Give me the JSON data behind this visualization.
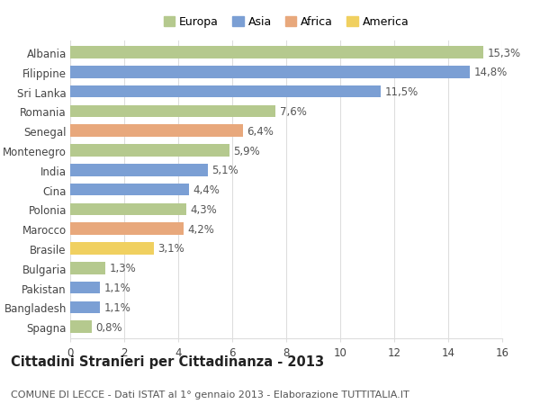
{
  "countries": [
    "Albania",
    "Filippine",
    "Sri Lanka",
    "Romania",
    "Senegal",
    "Montenegro",
    "India",
    "Cina",
    "Polonia",
    "Marocco",
    "Brasile",
    "Bulgaria",
    "Pakistan",
    "Bangladesh",
    "Spagna"
  ],
  "values": [
    15.3,
    14.8,
    11.5,
    7.6,
    6.4,
    5.9,
    5.1,
    4.4,
    4.3,
    4.2,
    3.1,
    1.3,
    1.1,
    1.1,
    0.8
  ],
  "continents": [
    "Europa",
    "Asia",
    "Asia",
    "Europa",
    "Africa",
    "Europa",
    "Asia",
    "Asia",
    "Europa",
    "Africa",
    "America",
    "Europa",
    "Asia",
    "Asia",
    "Europa"
  ],
  "continent_colors": {
    "Europa": "#b5c98e",
    "Asia": "#7b9fd4",
    "Africa": "#e8a87c",
    "America": "#f0d060"
  },
  "legend_order": [
    "Europa",
    "Asia",
    "Africa",
    "America"
  ],
  "title": "Cittadini Stranieri per Cittadinanza - 2013",
  "subtitle": "COMUNE DI LECCE - Dati ISTAT al 1° gennaio 2013 - Elaborazione TUTTITALIA.IT",
  "xlim": [
    0,
    16
  ],
  "xticks": [
    0,
    2,
    4,
    6,
    8,
    10,
    12,
    14,
    16
  ],
  "background_color": "#ffffff",
  "grid_color": "#dddddd",
  "bar_height": 0.62,
  "label_fontsize": 8.5,
  "title_fontsize": 10.5,
  "subtitle_fontsize": 8.0,
  "ytick_fontsize": 8.5,
  "xtick_fontsize": 8.5
}
